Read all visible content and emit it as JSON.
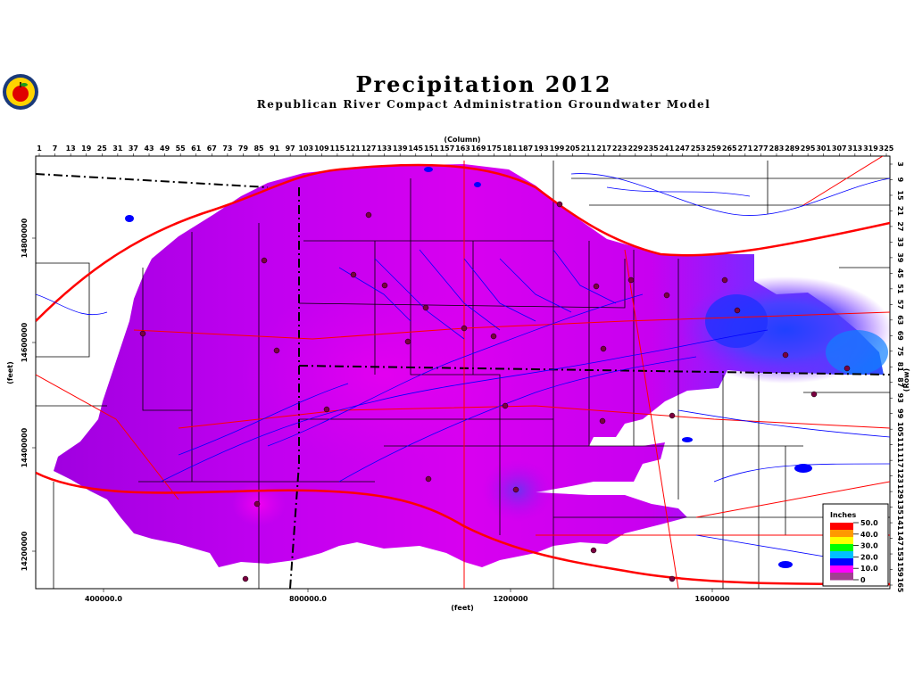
{
  "title": "Precipitation 2012",
  "subtitle": "Republican River Compact Administration Groundwater Model",
  "logo": {
    "icon": "apple-seal-icon"
  },
  "axes": {
    "column_label": "(Column)",
    "row_label": "(Row)",
    "x_label": "(feet)",
    "y_label": "(feet)",
    "column_ticks": [
      "1",
      "7",
      "13",
      "19",
      "25",
      "31",
      "37",
      "43",
      "49",
      "55",
      "61",
      "67",
      "73",
      "79",
      "85",
      "91",
      "97",
      "103",
      "109",
      "115",
      "121",
      "127",
      "133",
      "139",
      "145",
      "151",
      "157",
      "163",
      "169",
      "175",
      "181",
      "187",
      "193",
      "199",
      "205",
      "211",
      "217",
      "223",
      "229",
      "235",
      "241",
      "247",
      "253",
      "259",
      "265",
      "271",
      "277",
      "283",
      "289",
      "295",
      "301",
      "307",
      "313",
      "319",
      "325"
    ],
    "row_ticks": [
      "3",
      "9",
      "15",
      "21",
      "27",
      "33",
      "39",
      "45",
      "51",
      "57",
      "63",
      "69",
      "75",
      "81",
      "87",
      "93",
      "99",
      "105",
      "111",
      "117",
      "123",
      "129",
      "135",
      "141",
      "147",
      "153",
      "159",
      "165"
    ],
    "x_ticks": [
      "400000.0",
      "800000.0",
      "1200000",
      "1600000"
    ],
    "y_ticks": [
      "14800000",
      "14600000",
      "14400000",
      "14200000"
    ]
  },
  "legend": {
    "title": "Inches",
    "labels": [
      "50.0",
      "40.0",
      "30.0",
      "20.0",
      "10.0",
      "0"
    ],
    "colors": [
      "#ff0000",
      "#ff9900",
      "#ffff00",
      "#00ff00",
      "#00c0ff",
      "#0000ff",
      "#ff00ff",
      "#a04090"
    ]
  },
  "colors": {
    "precip_purple": "#b000f0",
    "precip_magenta": "#e000f0",
    "precip_blue": "#4040ff",
    "stream": "#0000ff",
    "road": "#ff0000",
    "boundary": "#000000"
  }
}
